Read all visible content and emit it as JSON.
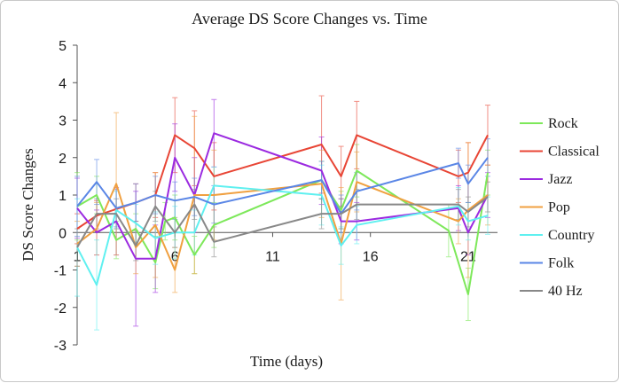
{
  "chart_data": {
    "type": "line",
    "title": "Average DS Score Changes vs. Time",
    "xlabel": "Time (days)",
    "ylabel": "DS Score Changes",
    "xlim": [
      1,
      22.5
    ],
    "ylim": [
      -3,
      5
    ],
    "x_ticks": [
      1,
      6,
      11,
      16,
      21
    ],
    "y_ticks": [
      -3,
      -2,
      -1,
      0,
      1,
      2,
      3,
      4,
      5
    ],
    "grid": false,
    "legend_position": "right",
    "error_bars": true,
    "series": [
      {
        "name": "Rock",
        "color": "#7de85a",
        "points": [
          [
            1,
            0.7
          ],
          [
            2,
            1.0
          ],
          [
            3,
            -0.2
          ],
          [
            4,
            0.1
          ],
          [
            5,
            -0.8
          ],
          [
            5.5,
            0.3
          ],
          [
            6,
            0.4
          ],
          [
            7,
            -0.6
          ],
          [
            8,
            0.2
          ],
          [
            13.5,
            1.4
          ],
          [
            14.5,
            0.6
          ],
          [
            15.3,
            1.65
          ],
          [
            20,
            0.05
          ],
          [
            21,
            -1.65
          ],
          [
            22,
            1.6
          ]
        ],
        "errors": [
          0.9,
          0.5,
          0.5,
          0.4,
          0.7,
          0.5,
          0.6,
          0.5,
          0.6,
          0.5,
          0.5,
          0.7,
          0.7,
          0.7,
          0.6
        ]
      },
      {
        "name": "Classical",
        "color": "#e84535",
        "points": [
          [
            1,
            0.1
          ],
          [
            2,
            0.45
          ],
          [
            4,
            0.8
          ],
          [
            5,
            1.0
          ],
          [
            6,
            2.6
          ],
          [
            7,
            2.25
          ],
          [
            8,
            1.5
          ],
          [
            13.5,
            2.35
          ],
          [
            14.5,
            1.5
          ],
          [
            15.3,
            2.6
          ],
          [
            20.5,
            1.5
          ],
          [
            21,
            1.6
          ],
          [
            22,
            2.6
          ]
        ],
        "errors": [
          0.4,
          0.4,
          0.5,
          0.6,
          1.0,
          1.0,
          0.9,
          1.3,
          0.8,
          0.9,
          0.7,
          0.8,
          0.8
        ]
      },
      {
        "name": "Jazz",
        "color": "#9b2ae0",
        "points": [
          [
            1,
            0.65
          ],
          [
            2,
            0.0
          ],
          [
            3,
            0.3
          ],
          [
            4,
            -0.7
          ],
          [
            5,
            -0.7
          ],
          [
            6,
            2.0
          ],
          [
            7,
            1.0
          ],
          [
            8,
            2.65
          ],
          [
            13.5,
            1.65
          ],
          [
            14.5,
            0.3
          ],
          [
            15.3,
            0.3
          ],
          [
            20.5,
            0.65
          ],
          [
            21,
            0.0
          ],
          [
            22,
            1.0
          ]
        ],
        "errors": [
          0.8,
          0.6,
          0.9,
          1.8,
          0.9,
          0.9,
          1.0,
          0.9,
          0.9,
          0.6,
          0.5,
          0.6,
          0.6,
          0.6
        ]
      },
      {
        "name": "Pop",
        "color": "#f0a040",
        "points": [
          [
            1,
            -0.3
          ],
          [
            2,
            0.1
          ],
          [
            3,
            1.3
          ],
          [
            4,
            -0.4
          ],
          [
            5,
            0.2
          ],
          [
            6,
            -1.0
          ],
          [
            7,
            1.0
          ],
          [
            8,
            1.0
          ],
          [
            13.5,
            1.3
          ],
          [
            14.5,
            -0.3
          ],
          [
            15.3,
            1.35
          ],
          [
            20.5,
            0.3
          ],
          [
            21,
            0.6
          ],
          [
            22,
            1.0
          ]
        ],
        "errors": [
          0.6,
          0.7,
          1.9,
          0.7,
          1.4,
          0.6,
          2.1,
          1.2,
          0.9,
          1.5,
          0.8,
          0.6,
          1.8,
          0.8
        ]
      },
      {
        "name": "Country",
        "color": "#5ff0f0",
        "points": [
          [
            1,
            -0.4
          ],
          [
            2,
            -1.4
          ],
          [
            3,
            0.6
          ],
          [
            4,
            0.25
          ],
          [
            5,
            -0.15
          ],
          [
            6,
            0.0
          ],
          [
            7,
            0.0
          ],
          [
            8,
            1.25
          ],
          [
            13.5,
            1.0
          ],
          [
            14.5,
            -0.35
          ],
          [
            15.3,
            0.2
          ],
          [
            20.5,
            0.7
          ],
          [
            21,
            0.3
          ],
          [
            22,
            0.45
          ]
        ],
        "errors": [
          1.3,
          1.2,
          0.5,
          0.5,
          0.7,
          0.7,
          0.6,
          0.5,
          0.8,
          0.5,
          0.5,
          0.5,
          0.5,
          0.5
        ]
      },
      {
        "name": "Folk",
        "color": "#5a86e6",
        "points": [
          [
            1,
            0.7
          ],
          [
            2,
            1.35
          ],
          [
            3,
            0.65
          ],
          [
            4,
            0.8
          ],
          [
            5,
            1.0
          ],
          [
            6,
            0.85
          ],
          [
            7,
            0.95
          ],
          [
            8,
            0.75
          ],
          [
            13.5,
            1.4
          ],
          [
            14.5,
            0.5
          ],
          [
            15.3,
            1.1
          ],
          [
            20.5,
            1.85
          ],
          [
            21,
            1.3
          ],
          [
            22,
            2.0
          ]
        ],
        "errors": [
          0.8,
          0.6,
          0.5,
          0.5,
          0.5,
          0.5,
          0.5,
          0.5,
          0.5,
          0.5,
          0.5,
          0.4,
          0.5,
          0.5
        ]
      },
      {
        "name": "40 Hz",
        "color": "#888888",
        "points": [
          [
            1,
            -0.4
          ],
          [
            2,
            0.5
          ],
          [
            3,
            0.5
          ],
          [
            4,
            -0.35
          ],
          [
            5,
            0.7
          ],
          [
            6,
            0.0
          ],
          [
            7,
            0.75
          ],
          [
            8,
            -0.25
          ],
          [
            13.5,
            0.5
          ],
          [
            14.5,
            0.5
          ],
          [
            15.3,
            0.75
          ],
          [
            20.5,
            0.75
          ],
          [
            21,
            0.55
          ],
          [
            22,
            0.95
          ]
        ],
        "errors": [
          0.5,
          0.4,
          0.4,
          0.4,
          0.4,
          0.4,
          0.4,
          0.4,
          0.4,
          0.4,
          0.4,
          0.4,
          0.4,
          0.4
        ]
      }
    ]
  }
}
